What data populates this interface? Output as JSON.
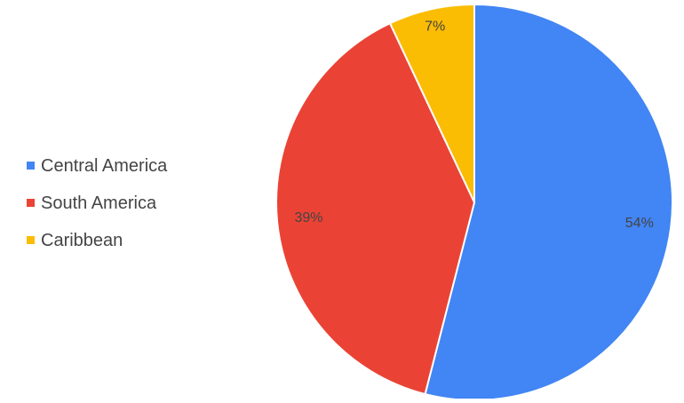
{
  "chart_data": {
    "type": "pie",
    "title": "",
    "legend_position": "left",
    "slices": [
      {
        "name": "Central America",
        "value": 54,
        "label": "54%",
        "color": "#4285F4"
      },
      {
        "name": "South America",
        "value": 39,
        "label": "39%",
        "color": "#EA4335"
      },
      {
        "name": "Caribbean",
        "value": 7,
        "label": "7%",
        "color": "#FBBC04"
      }
    ]
  }
}
